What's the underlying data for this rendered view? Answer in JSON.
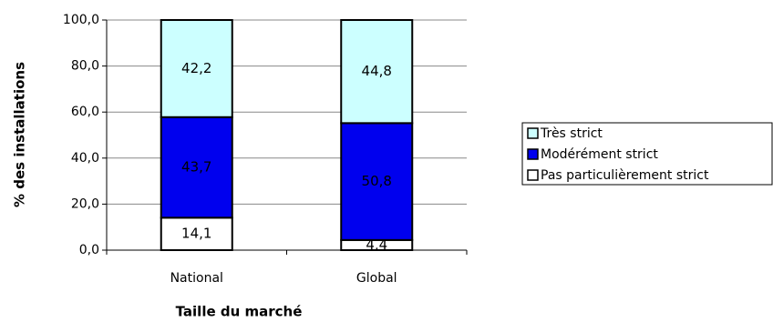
{
  "chart_data": {
    "type": "stacked_bar",
    "x_label": "Taille du marché",
    "y_label": "% des installations",
    "categories": [
      "National",
      "Global"
    ],
    "series": [
      {
        "name": "Pas particulièrement strict",
        "color": "#ffffff",
        "values": [
          14.1,
          4.4
        ],
        "value_labels": [
          "14,1",
          "4,4"
        ]
      },
      {
        "name": "Modérément strict",
        "color": "#0000ee",
        "values": [
          43.7,
          50.8
        ],
        "value_labels": [
          "43,7",
          "50,8"
        ]
      },
      {
        "name": "Très strict",
        "color": "#ccffff",
        "values": [
          42.2,
          44.8
        ],
        "value_labels": [
          "42,2",
          "44,8"
        ]
      }
    ],
    "ylim": [
      0,
      100
    ],
    "yticks": [
      {
        "value": 0,
        "label": "0,0"
      },
      {
        "value": 20,
        "label": "20,0"
      },
      {
        "value": 40,
        "label": "40,0"
      },
      {
        "value": 60,
        "label": "60,0"
      },
      {
        "value": 80,
        "label": "80,0"
      },
      {
        "value": 100,
        "label": "100,0"
      }
    ],
    "grid": true,
    "legend": "right"
  }
}
